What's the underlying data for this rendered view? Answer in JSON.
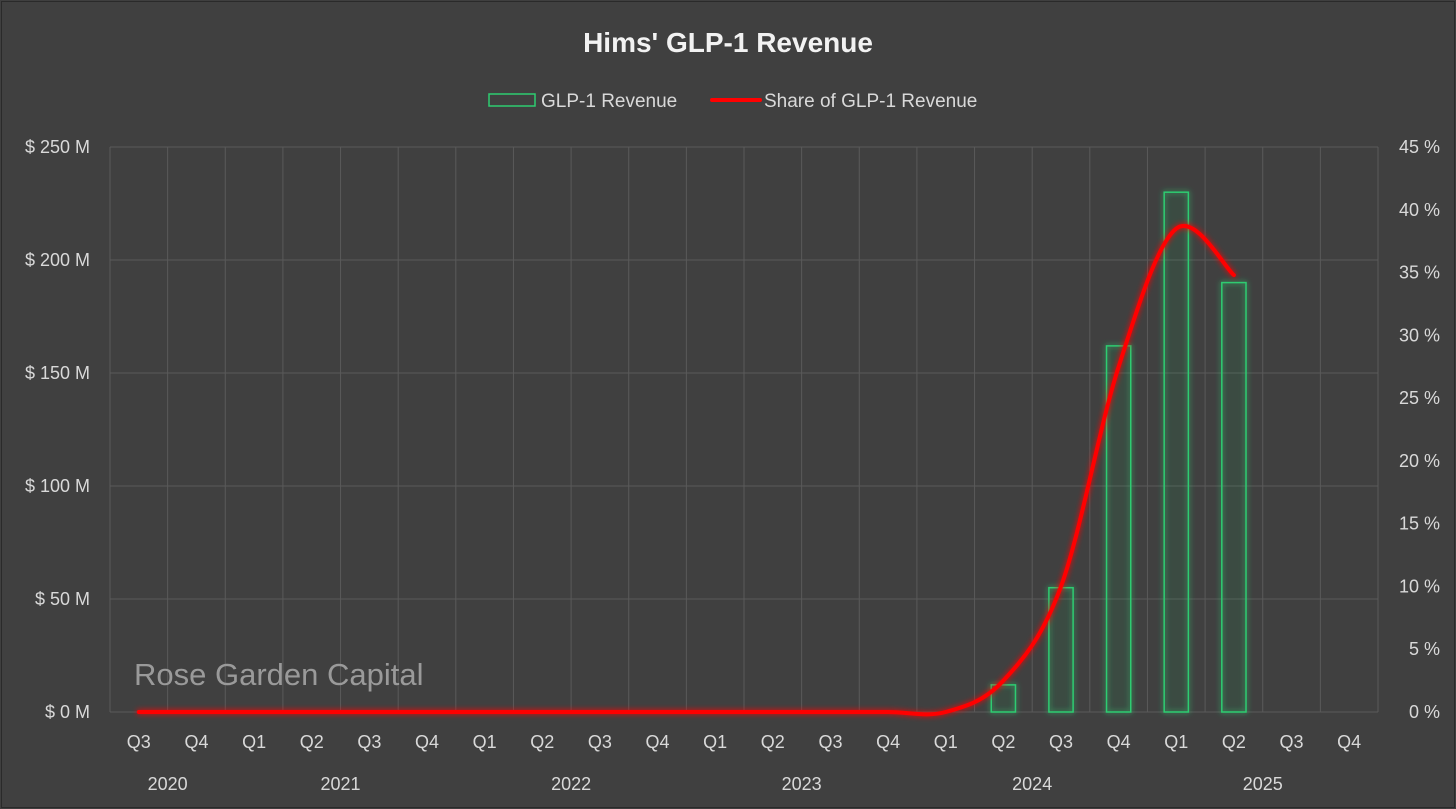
{
  "watermark": "Rose Garden Capital",
  "colors": {
    "background": "#404040",
    "bar_stroke": "#2ecc71",
    "line": "#ff0000",
    "grid": "#5a5a5a",
    "text": "#d9d9d9"
  },
  "chart_data": {
    "type": "bar",
    "title": "Hims' GLP-1 Revenue",
    "legend_position": "top-center",
    "grid": true,
    "categories": [
      "Q3",
      "Q4",
      "Q1",
      "Q2",
      "Q3",
      "Q4",
      "Q1",
      "Q2",
      "Q3",
      "Q4",
      "Q1",
      "Q2",
      "Q3",
      "Q4",
      "Q1",
      "Q2",
      "Q3",
      "Q4",
      "Q1",
      "Q2",
      "Q3",
      "Q4"
    ],
    "years": [
      {
        "label": "2020",
        "start": 0,
        "end": 1
      },
      {
        "label": "2021",
        "start": 2,
        "end": 5
      },
      {
        "label": "2022",
        "start": 6,
        "end": 9
      },
      {
        "label": "2023",
        "start": 10,
        "end": 13
      },
      {
        "label": "2024",
        "start": 14,
        "end": 17
      },
      {
        "label": "2025",
        "start": 18,
        "end": 21
      }
    ],
    "y_left": {
      "ticks": [
        0,
        50,
        100,
        150,
        200,
        250
      ],
      "tick_labels": [
        "$ 0 M",
        "$ 50 M",
        "$ 100 M",
        "$ 150 M",
        "$ 200 M",
        "$ 250 M"
      ],
      "range": [
        0,
        250
      ]
    },
    "y_right": {
      "ticks": [
        0,
        5,
        10,
        15,
        20,
        25,
        30,
        35,
        40,
        45
      ],
      "tick_labels": [
        "0 %",
        "5 %",
        "10 %",
        "15 %",
        "20 %",
        "25 %",
        "30 %",
        "35 %",
        "40 %",
        "45 %"
      ],
      "range": [
        0,
        45
      ]
    },
    "series": [
      {
        "name": "GLP-1 Revenue",
        "type": "bar",
        "axis": "left",
        "unit": "$M",
        "values": [
          null,
          null,
          null,
          null,
          null,
          null,
          null,
          null,
          null,
          null,
          null,
          null,
          null,
          null,
          null,
          12,
          55,
          162,
          230,
          190,
          null,
          null
        ]
      },
      {
        "name": "Share of GLP-1 Revenue",
        "type": "line",
        "axis": "right",
        "unit": "%",
        "values": [
          0,
          0,
          0,
          0,
          0,
          0,
          0,
          0,
          0,
          0,
          0,
          0,
          0,
          0,
          0,
          2.5,
          10,
          27.5,
          38.5,
          34.8,
          null,
          null
        ]
      }
    ]
  }
}
